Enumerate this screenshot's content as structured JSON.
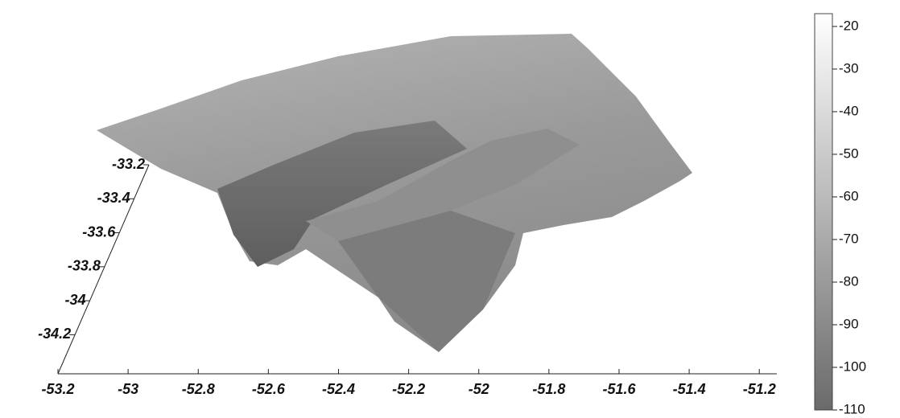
{
  "chart_data": {
    "type": "surface",
    "xlim": [
      -53.2,
      -51.15
    ],
    "xticks": [
      -53.2,
      -53,
      -52.8,
      -52.6,
      -52.4,
      -52.2,
      -52,
      -51.8,
      -51.6,
      -51.4,
      -51.2
    ],
    "ylim": [
      -34.43,
      -33.2
    ],
    "yticks": [
      -33.2,
      -33.4,
      -33.6,
      -33.8,
      -34,
      -34.2
    ],
    "zlim": [
      -110,
      -17
    ],
    "zticks": [
      -20,
      -30,
      -40,
      -50,
      -60,
      -70,
      -80,
      -90,
      -100,
      -110
    ],
    "colormap": [
      "#6a6a6a",
      "#ffffff"
    ]
  }
}
